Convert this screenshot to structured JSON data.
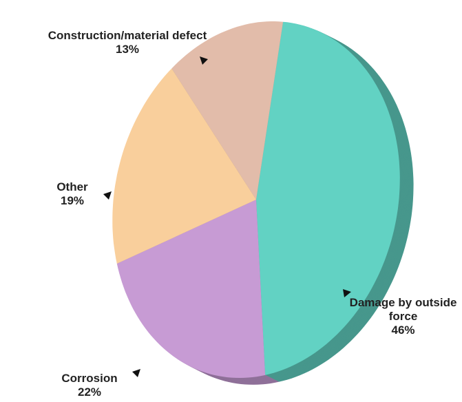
{
  "chart_data": {
    "type": "pie",
    "categories": [
      "Construction/material defect",
      "Other",
      "Corrosion",
      "Damage by outside force"
    ],
    "values": [
      13,
      19,
      22,
      46
    ],
    "value_labels": [
      "13%",
      "19%",
      "22%",
      "46%"
    ],
    "colors": [
      "#e2bcaa",
      "#f9cf9c",
      "#c79bd4",
      "#62d2c3"
    ]
  }
}
